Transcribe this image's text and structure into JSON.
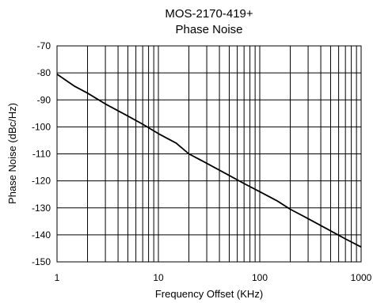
{
  "chart_data": {
    "type": "line",
    "title": "MOS-2170-419+",
    "subtitle": "Phase Noise",
    "xlabel": "Frequency Offset (KHz)",
    "ylabel": "Phase Noise (dBc/Hz)",
    "x_scale": "log",
    "xlim": [
      1,
      1000
    ],
    "ylim": [
      -150,
      -70
    ],
    "x_ticks": [
      1,
      10,
      100,
      1000
    ],
    "x_tick_labels": [
      "1",
      "10",
      "100",
      "1000"
    ],
    "y_ticks": [
      -70,
      -80,
      -90,
      -100,
      -110,
      -120,
      -130,
      -140,
      -150
    ],
    "y_tick_labels": [
      "-70",
      "-80",
      "-90",
      "-100",
      "-110",
      "-120",
      "-130",
      "-140",
      "-150"
    ],
    "grid": true,
    "series": [
      {
        "x": [
          1,
          1.2,
          1.5,
          2,
          3,
          5,
          7,
          10,
          15,
          20,
          30,
          50,
          70,
          100,
          150,
          200,
          300,
          500,
          700,
          1000
        ],
        "values": [
          -80.5,
          -82.5,
          -85,
          -87.5,
          -91.5,
          -96,
          -99,
          -102.5,
          -106,
          -110,
          -113.5,
          -118,
          -121,
          -124,
          -127.5,
          -130.5,
          -134,
          -138.5,
          -141.5,
          -144.5
        ]
      }
    ],
    "colors": {
      "line": "#000000",
      "grid": "#000000",
      "background": "#ffffff"
    }
  }
}
